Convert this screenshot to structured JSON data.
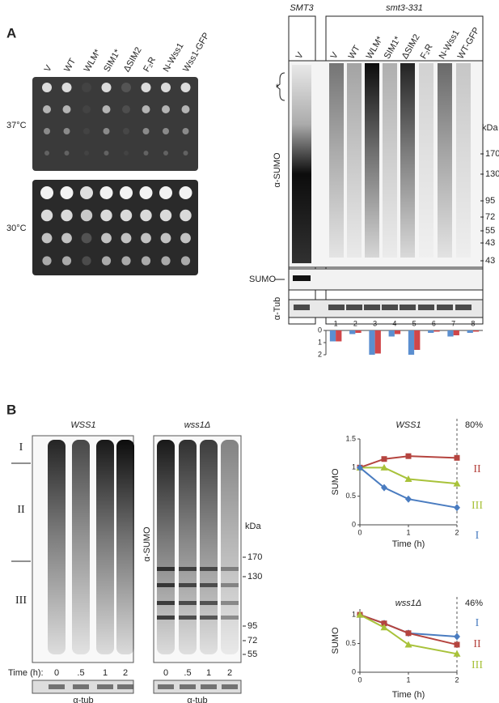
{
  "panel_a": {
    "label": "A",
    "plate_columns": [
      "V",
      "WT",
      "WLM*",
      "SIM1*",
      "ΔSIM2",
      "F₂R",
      "N-Wss1",
      "Wss1-GFP"
    ],
    "plate_rows": [
      "37°C",
      "30°C"
    ],
    "blot_groups": [
      "SMT3",
      "smt3-331"
    ],
    "blot_lanes": [
      "V",
      "V",
      "WT",
      "WLM*",
      "SIM1*",
      "ΔSIM2",
      "F₂R",
      "N-Wss1",
      "WT-GFP"
    ],
    "asterisk": "*",
    "blot_labels": [
      "α-SUMO",
      "SUMO",
      "α-Tub"
    ],
    "kda_unit": "kDa",
    "kda_markers": [
      170,
      130,
      95,
      72,
      55,
      43,
      43
    ]
  },
  "panel_b": {
    "label": "B",
    "gels": [
      {
        "title": "WSS1",
        "time_labels": [
          "0",
          ".5",
          "1",
          "2"
        ],
        "loading": "α-tub"
      },
      {
        "title": "wss1Δ",
        "time_labels": [
          "0",
          ".5",
          "1",
          "2"
        ],
        "loading": "α-tub"
      }
    ],
    "regions": [
      "I",
      "II",
      "III"
    ],
    "time_label": "Time (h):",
    "antibody": "α-SUMO",
    "kda_unit": "kDa",
    "kda_markers": [
      170,
      130,
      95,
      72,
      55
    ]
  },
  "chart_data": [
    {
      "type": "bar",
      "categories": [
        "1",
        "2",
        "3",
        "4",
        "5",
        "6",
        "7",
        "8"
      ],
      "inverted": true,
      "ylim": [
        0,
        2
      ],
      "yticks": [
        0,
        1,
        2
      ],
      "series": [
        {
          "color": "#5b8fd0",
          "values": [
            0.9,
            0.3,
            2.0,
            0.5,
            2.0,
            0.2,
            0.5,
            0.2
          ]
        },
        {
          "color": "#d0474a",
          "values": [
            0.9,
            0.2,
            1.9,
            0.3,
            1.6,
            0.1,
            0.4,
            0.1
          ]
        }
      ]
    },
    {
      "type": "line",
      "title": "WSS1",
      "annotation": "80%",
      "xlabel": "Time (h)",
      "ylabel": "SUMO",
      "x": [
        0,
        0.5,
        1,
        2
      ],
      "xlim": [
        0,
        2
      ],
      "xticks": [
        0,
        1,
        2
      ],
      "ylim": [
        0,
        1.5
      ],
      "yticks": [
        0,
        0.5,
        1,
        1.5
      ],
      "reference_line": 2,
      "series": [
        {
          "name": "II",
          "color": "#b5443f",
          "marker": "square",
          "values": [
            1,
            1.15,
            1.2,
            1.17
          ]
        },
        {
          "name": "III",
          "color": "#a8c23a",
          "marker": "triangle",
          "values": [
            1,
            1.0,
            0.8,
            0.72
          ]
        },
        {
          "name": "I",
          "color": "#4a7cc0",
          "marker": "diamond",
          "values": [
            1,
            0.65,
            0.45,
            0.3
          ]
        }
      ]
    },
    {
      "type": "line",
      "title": "wss1Δ",
      "annotation": "46%",
      "xlabel": "Time (h)",
      "ylabel": "SUMO",
      "x": [
        0,
        0.5,
        1,
        2
      ],
      "xlim": [
        0,
        2
      ],
      "xticks": [
        0,
        1,
        2
      ],
      "ylim": [
        0,
        1.1
      ],
      "yticks": [
        0,
        0.5,
        1
      ],
      "reference_line": 2,
      "series": [
        {
          "name": "I",
          "color": "#4a7cc0",
          "marker": "diamond",
          "values": [
            1,
            0.85,
            0.68,
            0.62
          ]
        },
        {
          "name": "II",
          "color": "#b5443f",
          "marker": "square",
          "values": [
            1,
            0.85,
            0.68,
            0.48
          ]
        },
        {
          "name": "III",
          "color": "#a8c23a",
          "marker": "triangle",
          "values": [
            1,
            0.78,
            0.48,
            0.32
          ]
        }
      ]
    }
  ]
}
